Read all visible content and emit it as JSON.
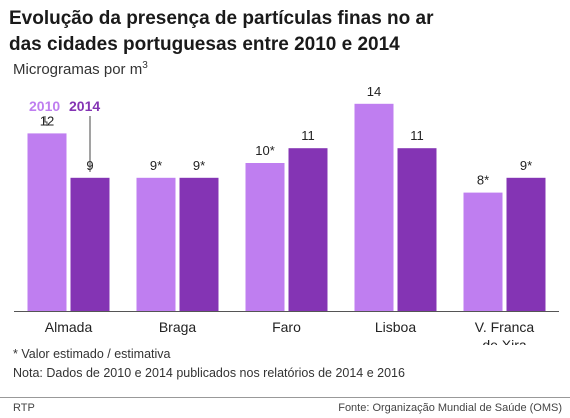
{
  "header": {
    "title_line1": "Evolução da presença de partículas finas no ar",
    "title_line2": "das cidades portuguesas entre 2010 e 2014",
    "unit_prefix": "Microgramas por m",
    "unit_sup": "3"
  },
  "chart_data": {
    "type": "bar",
    "categories": [
      "Almada",
      "Braga",
      "Faro",
      "Lisboa",
      "V. Franca\nde Xira"
    ],
    "series": [
      {
        "name": "2010",
        "values": [
          12,
          9,
          10,
          14,
          8
        ],
        "labels": [
          "12",
          "9*",
          "10*",
          "14",
          "8*"
        ],
        "color": "#bf7ef0"
      },
      {
        "name": "2014",
        "values": [
          9,
          9,
          11,
          11,
          9
        ],
        "labels": [
          "9",
          "9*",
          "11",
          "11",
          "9*"
        ],
        "color": "#8434b4"
      }
    ],
    "ylim": [
      0,
      15
    ],
    "grid": false,
    "legend": "top-left"
  },
  "notes": {
    "estimate": "* Valor estimado / estimativa",
    "data_note": "Nota: Dados de 2010 e 2014 publicados nos relatórios de 2014 e 2016"
  },
  "footer": {
    "left": "RTP",
    "right": "Fonte: Organização Mundial de Saúde (OMS)"
  }
}
